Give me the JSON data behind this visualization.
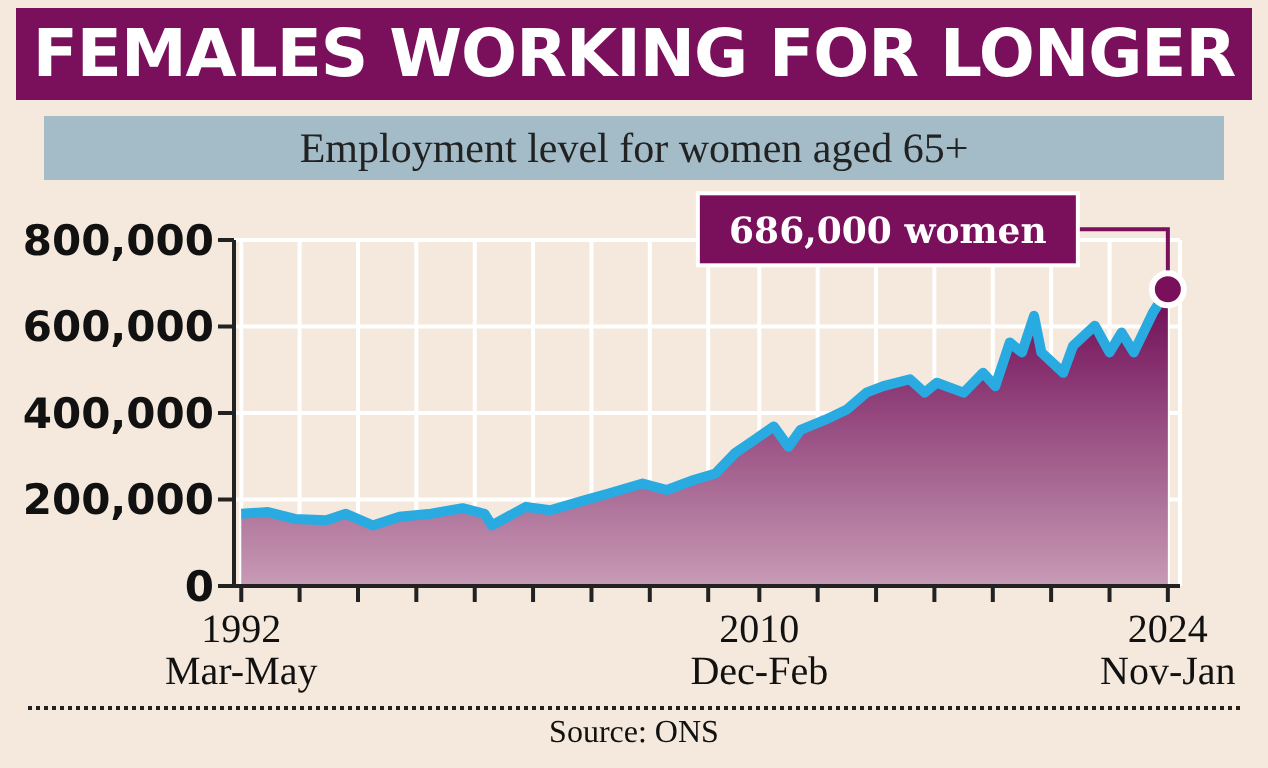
{
  "chart_data": {
    "type": "area",
    "title": "FEMALES WORKING FOR LONGER",
    "subtitle": "Employment level for women aged 65+",
    "x": [
      "1992-04",
      "1993-03",
      "1994-02",
      "1995-03",
      "1995-11",
      "1996-10",
      "1997-09",
      "1998-10",
      "1999-11",
      "2000-08",
      "2000-11",
      "2002-01",
      "2002-11",
      "2004-01",
      "2004-11",
      "2006-01",
      "2006-11",
      "2007-10",
      "2008-07",
      "2009-03",
      "2009-11",
      "2010-07",
      "2011-01",
      "2011-06",
      "2012-04",
      "2013-01",
      "2013-09",
      "2014-04",
      "2015-03",
      "2015-09",
      "2016-02",
      "2017-01",
      "2017-09",
      "2018-02",
      "2018-08",
      "2019-01",
      "2019-06",
      "2019-09",
      "2020-06",
      "2020-10",
      "2021-07",
      "2022-01",
      "2022-06",
      "2022-11",
      "2023-07",
      "2024-01"
    ],
    "series": [
      {
        "color": "#29abe2",
        "values": [
          167000,
          171000,
          155000,
          152000,
          167000,
          140000,
          160000,
          167000,
          180000,
          167000,
          140000,
          183000,
          175000,
          198000,
          214000,
          237000,
          222000,
          245000,
          260000,
          307000,
          338000,
          369000,
          322000,
          361000,
          384000,
          408000,
          447000,
          462000,
          478000,
          447000,
          470000,
          447000,
          493000,
          462000,
          563000,
          540000,
          625000,
          540000,
          493000,
          555000,
          602000,
          540000,
          586000,
          540000,
          633000,
          686000
        ]
      }
    ],
    "xlim": [
      "1992-01",
      "2024-06"
    ],
    "xticks": [
      {
        "value": "1992-04",
        "label": "1992\nMar-May"
      },
      {
        "value": "1994-04",
        "label": null
      },
      {
        "value": "1996-04",
        "label": null
      },
      {
        "value": "1998-04",
        "label": null
      },
      {
        "value": "2000-04",
        "label": null
      },
      {
        "value": "2002-04",
        "label": null
      },
      {
        "value": "2004-04",
        "label": null
      },
      {
        "value": "2006-04",
        "label": null
      },
      {
        "value": "2008-04",
        "label": null
      },
      {
        "value": "2010-01",
        "label": "2010\nDec-Feb"
      },
      {
        "value": "2012-01",
        "label": null
      },
      {
        "value": "2014-01",
        "label": null
      },
      {
        "value": "2016-01",
        "label": null
      },
      {
        "value": "2018-01",
        "label": null
      },
      {
        "value": "2020-01",
        "label": null
      },
      {
        "value": "2022-01",
        "label": null
      },
      {
        "value": "2024-01",
        "label": "2024\nNov-Jan"
      }
    ],
    "ylim": [
      0,
      800000
    ],
    "yticks": [
      {
        "value": 0,
        "label": "0"
      },
      {
        "value": 200000,
        "label": "200,000"
      },
      {
        "value": 400000,
        "label": "400,000"
      },
      {
        "value": 600000,
        "label": "600,000"
      },
      {
        "value": 800000,
        "label": "800,000"
      }
    ],
    "grid": true,
    "annotations": [
      {
        "text": "686,000 women",
        "x": "2024-01",
        "y": 686000
      },
      "Source: ONS"
    ]
  }
}
